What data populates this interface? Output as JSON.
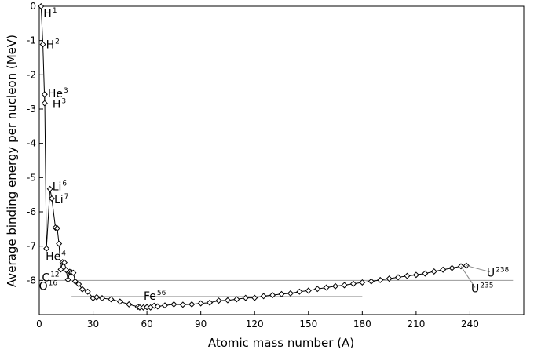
{
  "chart_data": {
    "type": "line",
    "xlabel": "Atomic mass number (A)",
    "ylabel": "Average binding energy per nucleon (MeV)",
    "xlim": [
      0,
      270
    ],
    "ylim": [
      -9,
      0
    ],
    "x_ticks": [
      "0",
      "30",
      "60",
      "90",
      "120",
      "150",
      "180",
      "210",
      "240"
    ],
    "y_ticks": [
      "0",
      "-1",
      "-2",
      "-3",
      "-4",
      "-5",
      "-6",
      "-7",
      "-8"
    ],
    "grid": false,
    "marker": "diamond",
    "series": [
      {
        "x": [
          1,
          2,
          3,
          3,
          4,
          6,
          7,
          9,
          10,
          11,
          12,
          13,
          14,
          15,
          16,
          17,
          18,
          19,
          20,
          22,
          24,
          27,
          30,
          32,
          35,
          40,
          45,
          50,
          55,
          56,
          58,
          60,
          62,
          64,
          66,
          70,
          75,
          80,
          85,
          90,
          95,
          100,
          105,
          110,
          115,
          120,
          125,
          130,
          135,
          140,
          145,
          150,
          155,
          160,
          165,
          170,
          175,
          180,
          185,
          190,
          195,
          200,
          205,
          210,
          215,
          220,
          225,
          230,
          235,
          238
        ],
        "y": [
          0.0,
          -1.11,
          -2.83,
          -2.57,
          -7.07,
          -5.33,
          -5.61,
          -6.46,
          -6.48,
          -6.93,
          -7.68,
          -7.47,
          -7.48,
          -7.7,
          -7.98,
          -7.75,
          -7.77,
          -7.78,
          -8.03,
          -8.11,
          -8.26,
          -8.33,
          -8.52,
          -8.49,
          -8.52,
          -8.55,
          -8.62,
          -8.7,
          -8.77,
          -8.79,
          -8.79,
          -8.78,
          -8.79,
          -8.74,
          -8.76,
          -8.73,
          -8.7,
          -8.71,
          -8.7,
          -8.67,
          -8.65,
          -8.59,
          -8.58,
          -8.55,
          -8.51,
          -8.51,
          -8.46,
          -8.43,
          -8.4,
          -8.38,
          -8.33,
          -8.3,
          -8.25,
          -8.21,
          -8.17,
          -8.14,
          -8.1,
          -8.06,
          -8.03,
          -7.99,
          -7.95,
          -7.91,
          -7.87,
          -7.84,
          -7.8,
          -7.74,
          -7.69,
          -7.64,
          -7.59,
          -7.57
        ]
      }
    ],
    "annotations": [
      {
        "base": "H",
        "sup": "1",
        "x": 1,
        "y": 0.0
      },
      {
        "base": "H",
        "sup": "2",
        "x": 2,
        "y": -1.11
      },
      {
        "base": "He",
        "sup": "3",
        "x": 3,
        "y": -2.57
      },
      {
        "base": "H",
        "sup": "3",
        "x": 3,
        "y": -2.83
      },
      {
        "base": "Li",
        "sup": "6",
        "x": 6,
        "y": -5.33
      },
      {
        "base": "Li",
        "sup": "7",
        "x": 7,
        "y": -5.61
      },
      {
        "base": "He",
        "sup": "4",
        "x": 4,
        "y": -7.07
      },
      {
        "base": "C",
        "sup": "12",
        "x": 12,
        "y": -7.68
      },
      {
        "base": "O",
        "sup": "16",
        "x": 16,
        "y": -7.98
      },
      {
        "base": "Fe",
        "sup": "56",
        "x": 56,
        "y": -8.79
      },
      {
        "base": "U",
        "sup": "238",
        "x": 238,
        "y": -7.57
      },
      {
        "base": "U",
        "sup": "235",
        "x": 235,
        "y": -7.59
      }
    ]
  }
}
